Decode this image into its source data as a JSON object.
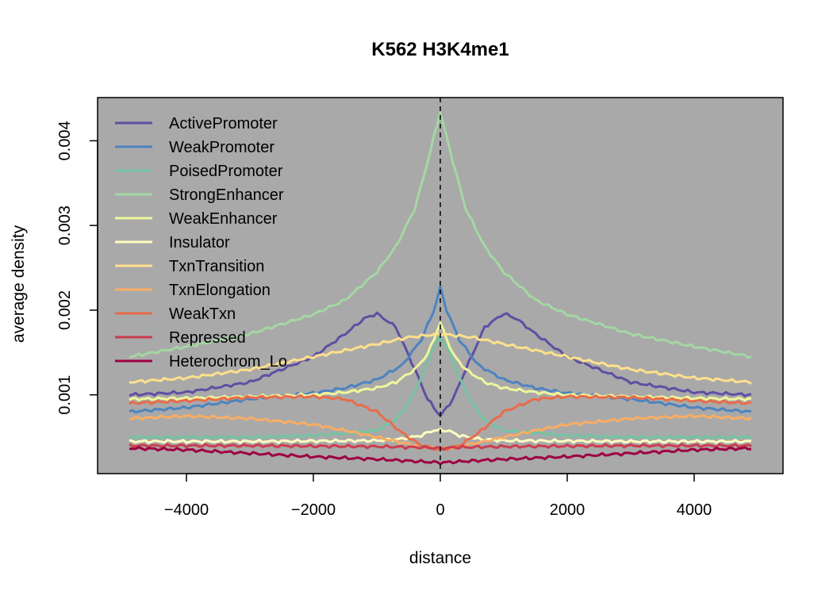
{
  "chart_data": {
    "type": "line",
    "title": "K562 H3K4me1",
    "xlabel": "distance",
    "ylabel": "average density",
    "xlim": [
      -5400,
      5400
    ],
    "ylim": [
      7e-05,
      0.00451
    ],
    "x_ticks": [
      -4000,
      -2000,
      0,
      2000,
      4000
    ],
    "x_tick_labels": [
      "−4000",
      "−2000",
      "0",
      "2000",
      "4000"
    ],
    "y_ticks": [
      0.001,
      0.002,
      0.003,
      0.004
    ],
    "y_tick_labels": [
      "0.001",
      "0.002",
      "0.003",
      "0.004"
    ],
    "vline": 0,
    "plot_background": "#a9a9a9",
    "grid": false,
    "legend_position": "top-left",
    "series": [
      {
        "name": "ActivePromoter",
        "color": "#5e4fa2",
        "x": [
          -4900,
          -4000,
          -3000,
          -2000,
          -1500,
          -1200,
          -1000,
          -700,
          -400,
          -200,
          0,
          200,
          400,
          700,
          1000,
          1200,
          1500,
          2000,
          3000,
          4000,
          4900
        ],
        "y": [
          0.001,
          0.00103,
          0.00115,
          0.00145,
          0.00172,
          0.0019,
          0.00196,
          0.0018,
          0.0013,
          0.00095,
          0.00075,
          0.00095,
          0.0013,
          0.0018,
          0.00196,
          0.0019,
          0.00172,
          0.00145,
          0.00115,
          0.00103,
          0.001
        ]
      },
      {
        "name": "WeakPromoter",
        "color": "#4d83c0",
        "x": [
          -4900,
          -4000,
          -3000,
          -2000,
          -1500,
          -1000,
          -600,
          -300,
          -100,
          0,
          100,
          300,
          600,
          1000,
          1500,
          2000,
          3000,
          4000,
          4900
        ],
        "y": [
          0.0008,
          0.00085,
          0.00095,
          0.00102,
          0.00108,
          0.00118,
          0.00135,
          0.00165,
          0.002,
          0.00227,
          0.002,
          0.00165,
          0.00135,
          0.00118,
          0.00108,
          0.00102,
          0.00095,
          0.00085,
          0.0008
        ]
      },
      {
        "name": "PoisedPromoter",
        "color": "#74c3a3",
        "x": [
          -4900,
          -3000,
          -2000,
          -1000,
          -700,
          -500,
          -300,
          -150,
          0,
          150,
          300,
          500,
          700,
          1000,
          2000,
          3000,
          4900
        ],
        "y": [
          0.0005,
          0.0005,
          0.00052,
          0.00058,
          0.0007,
          0.0009,
          0.0012,
          0.0015,
          0.0017,
          0.0015,
          0.0012,
          0.0009,
          0.0007,
          0.00058,
          0.00052,
          0.0005,
          0.0005
        ]
      },
      {
        "name": "StrongEnhancer",
        "color": "#a4d7a3",
        "x": [
          -4900,
          -4000,
          -3000,
          -2000,
          -1500,
          -1000,
          -700,
          -400,
          -200,
          0,
          200,
          400,
          700,
          1000,
          1500,
          2000,
          3000,
          4000,
          4900
        ],
        "y": [
          0.00145,
          0.00157,
          0.00172,
          0.00195,
          0.00212,
          0.00245,
          0.00275,
          0.0032,
          0.00375,
          0.00434,
          0.00375,
          0.0032,
          0.00275,
          0.00245,
          0.00212,
          0.00195,
          0.00172,
          0.00157,
          0.00145
        ]
      },
      {
        "name": "WeakEnhancer",
        "color": "#eef69a",
        "x": [
          -4900,
          -4000,
          -3000,
          -2000,
          -1500,
          -1000,
          -700,
          -400,
          -200,
          -80,
          0,
          80,
          200,
          400,
          700,
          1000,
          1500,
          2000,
          3000,
          4000,
          4900
        ],
        "y": [
          0.00095,
          0.00096,
          0.00098,
          0.001,
          0.00103,
          0.00108,
          0.00115,
          0.0013,
          0.00148,
          0.0017,
          0.00185,
          0.0017,
          0.00148,
          0.0013,
          0.00115,
          0.00108,
          0.00103,
          0.001,
          0.00098,
          0.00096,
          0.00095
        ]
      },
      {
        "name": "Insulator",
        "color": "#fffdbf",
        "x": [
          -4900,
          -3000,
          -1000,
          -600,
          -300,
          -120,
          0,
          120,
          300,
          600,
          1000,
          3000,
          4900
        ],
        "y": [
          0.00045,
          0.00045,
          0.00046,
          0.00048,
          0.00052,
          0.00058,
          0.00058,
          0.00058,
          0.00052,
          0.00048,
          0.00046,
          0.00045,
          0.00045
        ]
      },
      {
        "name": "TxnTransition",
        "color": "#fee08b",
        "x": [
          -4900,
          -4000,
          -3000,
          -2000,
          -1000,
          -500,
          0,
          500,
          1000,
          2000,
          3000,
          4000,
          4900
        ],
        "y": [
          0.00115,
          0.0012,
          0.0013,
          0.00145,
          0.0016,
          0.00168,
          0.00172,
          0.00168,
          0.0016,
          0.00145,
          0.0013,
          0.0012,
          0.00115
        ]
      },
      {
        "name": "TxnElongation",
        "color": "#f9ad62",
        "x": [
          -4900,
          -4000,
          -3000,
          -2000,
          -1500,
          -1000,
          -500,
          -200,
          0,
          200,
          500,
          1000,
          1500,
          2000,
          3000,
          4000,
          4900
        ],
        "y": [
          0.00072,
          0.00075,
          0.00072,
          0.00065,
          0.00058,
          0.0005,
          0.00042,
          0.00038,
          0.00036,
          0.00038,
          0.00042,
          0.0005,
          0.00058,
          0.00065,
          0.00072,
          0.00075,
          0.00072
        ]
      },
      {
        "name": "WeakTxn",
        "color": "#e86c4a",
        "x": [
          -4900,
          -4000,
          -3000,
          -2000,
          -1500,
          -1000,
          -600,
          -300,
          0,
          300,
          600,
          1000,
          1500,
          2000,
          3000,
          4000,
          4900
        ],
        "y": [
          0.0009,
          0.00093,
          0.00097,
          0.00098,
          0.00095,
          0.0008,
          0.00055,
          0.0004,
          0.00035,
          0.0004,
          0.00055,
          0.0008,
          0.00095,
          0.00098,
          0.00097,
          0.00093,
          0.0009
        ]
      },
      {
        "name": "Repressed",
        "color": "#cc3d4e",
        "x": [
          -4900,
          -3000,
          -1000,
          -300,
          0,
          300,
          1000,
          3000,
          4900
        ],
        "y": [
          0.0004,
          0.0004,
          0.00039,
          0.00038,
          0.00037,
          0.00038,
          0.00039,
          0.0004,
          0.0004
        ]
      },
      {
        "name": "Heterochrom_Lo",
        "color": "#9e0142",
        "x": [
          -4900,
          -4000,
          -3000,
          -2000,
          -1000,
          -500,
          0,
          500,
          1000,
          2000,
          3000,
          4000,
          4900
        ],
        "y": [
          0.00037,
          0.00035,
          0.00031,
          0.00027,
          0.00024,
          0.00022,
          0.0002,
          0.00022,
          0.00024,
          0.00027,
          0.00031,
          0.00035,
          0.00037
        ]
      }
    ]
  }
}
